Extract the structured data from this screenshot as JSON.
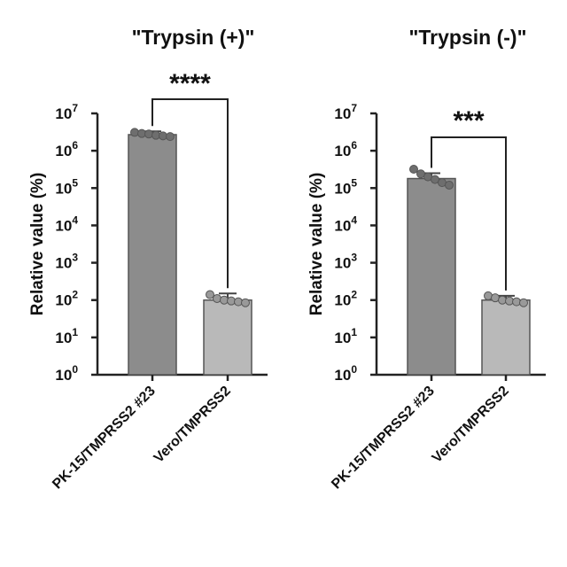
{
  "chart_data": [
    {
      "type": "bar",
      "title": "\"Trypsin (+)\"",
      "ylabel": "Relative value (%)",
      "yscale": "log10",
      "ylim": [
        1,
        10000000
      ],
      "yticks": [
        {
          "base": "10",
          "exp": "0"
        },
        {
          "base": "10",
          "exp": "1"
        },
        {
          "base": "10",
          "exp": "2"
        },
        {
          "base": "10",
          "exp": "3"
        },
        {
          "base": "10",
          "exp": "4"
        },
        {
          "base": "10",
          "exp": "5"
        },
        {
          "base": "10",
          "exp": "6"
        },
        {
          "base": "10",
          "exp": "7"
        }
      ],
      "categories": [
        "PK-15/TMPRSS2 #23",
        "Vero/TMPRSS2"
      ],
      "values": [
        2700000,
        100
      ],
      "error_upper": [
        3300000,
        150
      ],
      "points": [
        [
          3100000,
          2900000,
          2800000,
          2600000,
          2500000,
          2400000
        ],
        [
          140,
          110,
          100,
          95,
          90,
          85
        ]
      ],
      "bar_colors": [
        "#8c8c8c",
        "#b9b9b9"
      ],
      "significance": "****"
    },
    {
      "type": "bar",
      "title": "\"Trypsin (-)\"",
      "ylabel": "Relative value (%)",
      "yscale": "log10",
      "ylim": [
        1,
        10000000
      ],
      "yticks": [
        {
          "base": "10",
          "exp": "0"
        },
        {
          "base": "10",
          "exp": "1"
        },
        {
          "base": "10",
          "exp": "2"
        },
        {
          "base": "10",
          "exp": "3"
        },
        {
          "base": "10",
          "exp": "4"
        },
        {
          "base": "10",
          "exp": "5"
        },
        {
          "base": "10",
          "exp": "6"
        },
        {
          "base": "10",
          "exp": "7"
        }
      ],
      "categories": [
        "PK-15/TMPRSS2 #23",
        "Vero/TMPRSS2"
      ],
      "values": [
        180000,
        100
      ],
      "error_upper": [
        250000,
        130
      ],
      "points": [
        [
          320000,
          240000,
          200000,
          170000,
          140000,
          120000
        ],
        [
          130,
          115,
          100,
          95,
          90,
          85
        ]
      ],
      "bar_colors": [
        "#8c8c8c",
        "#b9b9b9"
      ],
      "significance": "***"
    }
  ]
}
